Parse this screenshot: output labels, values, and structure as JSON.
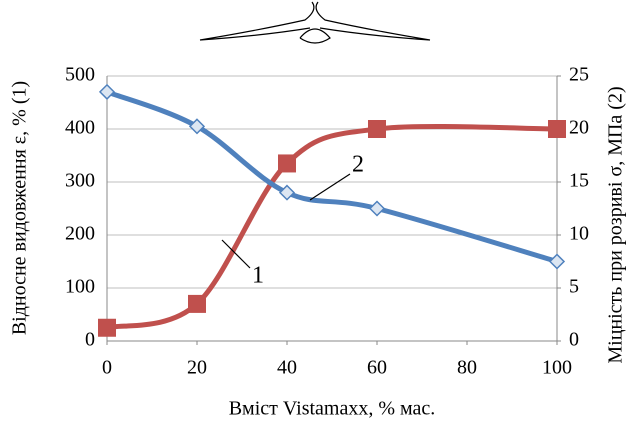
{
  "chart_data": {
    "type": "line",
    "x": [
      0,
      20,
      40,
      60,
      100
    ],
    "xlim": [
      0,
      100
    ],
    "xticks": [
      0,
      20,
      40,
      60,
      80,
      100
    ],
    "ylim": [
      0,
      500
    ],
    "yticks": [
      0,
      100,
      200,
      300,
      400,
      500
    ],
    "y2lim": [
      0,
      25
    ],
    "y2ticks": [
      0,
      5,
      10,
      15,
      20,
      25
    ],
    "xlabel": "Вміст Vistamaxx, % мас.",
    "ylabel": "Відносне видовження ε, % (1)",
    "y2label": "Міцність при розриві σ, МПа (2)",
    "grid": true,
    "series": [
      {
        "label": "1",
        "color": "#c0504d",
        "marker": "square",
        "values": [
          25,
          70,
          335,
          400,
          400
        ]
      },
      {
        "label": "2",
        "color": "#4f81bd",
        "marker": "diamond",
        "axis": "y2",
        "values": [
          23.5,
          20.25,
          14,
          12.5,
          7.5
        ]
      }
    ]
  }
}
